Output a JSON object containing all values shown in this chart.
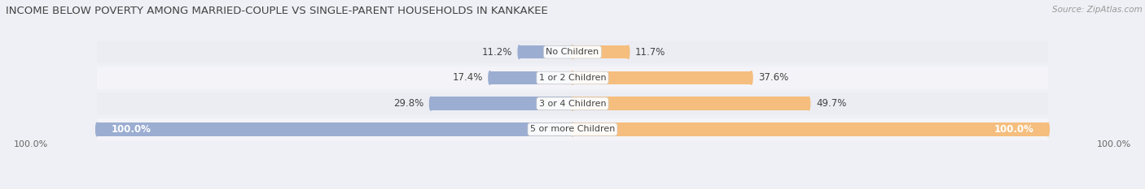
{
  "title": "INCOME BELOW POVERTY AMONG MARRIED-COUPLE VS SINGLE-PARENT HOUSEHOLDS IN KANKAKEE",
  "source": "Source: ZipAtlas.com",
  "categories": [
    "No Children",
    "1 or 2 Children",
    "3 or 4 Children",
    "5 or more Children"
  ],
  "married_values": [
    11.2,
    17.4,
    29.8,
    100.0
  ],
  "single_values": [
    11.7,
    37.6,
    49.7,
    100.0
  ],
  "married_color": "#9badd1",
  "single_color": "#f5be7e",
  "bg_row_even": "#ecedf3",
  "bg_row_odd": "#f4f4f8",
  "bg_figure": "#eff0f5",
  "title_fontsize": 9.5,
  "source_fontsize": 7.5,
  "label_fontsize": 8.5,
  "category_fontsize": 8,
  "legend_fontsize": 8.5,
  "axis_fontsize": 8,
  "bar_height": 0.52,
  "max_val": 100.0,
  "axis_label_left": "100.0%",
  "axis_label_right": "100.0%"
}
